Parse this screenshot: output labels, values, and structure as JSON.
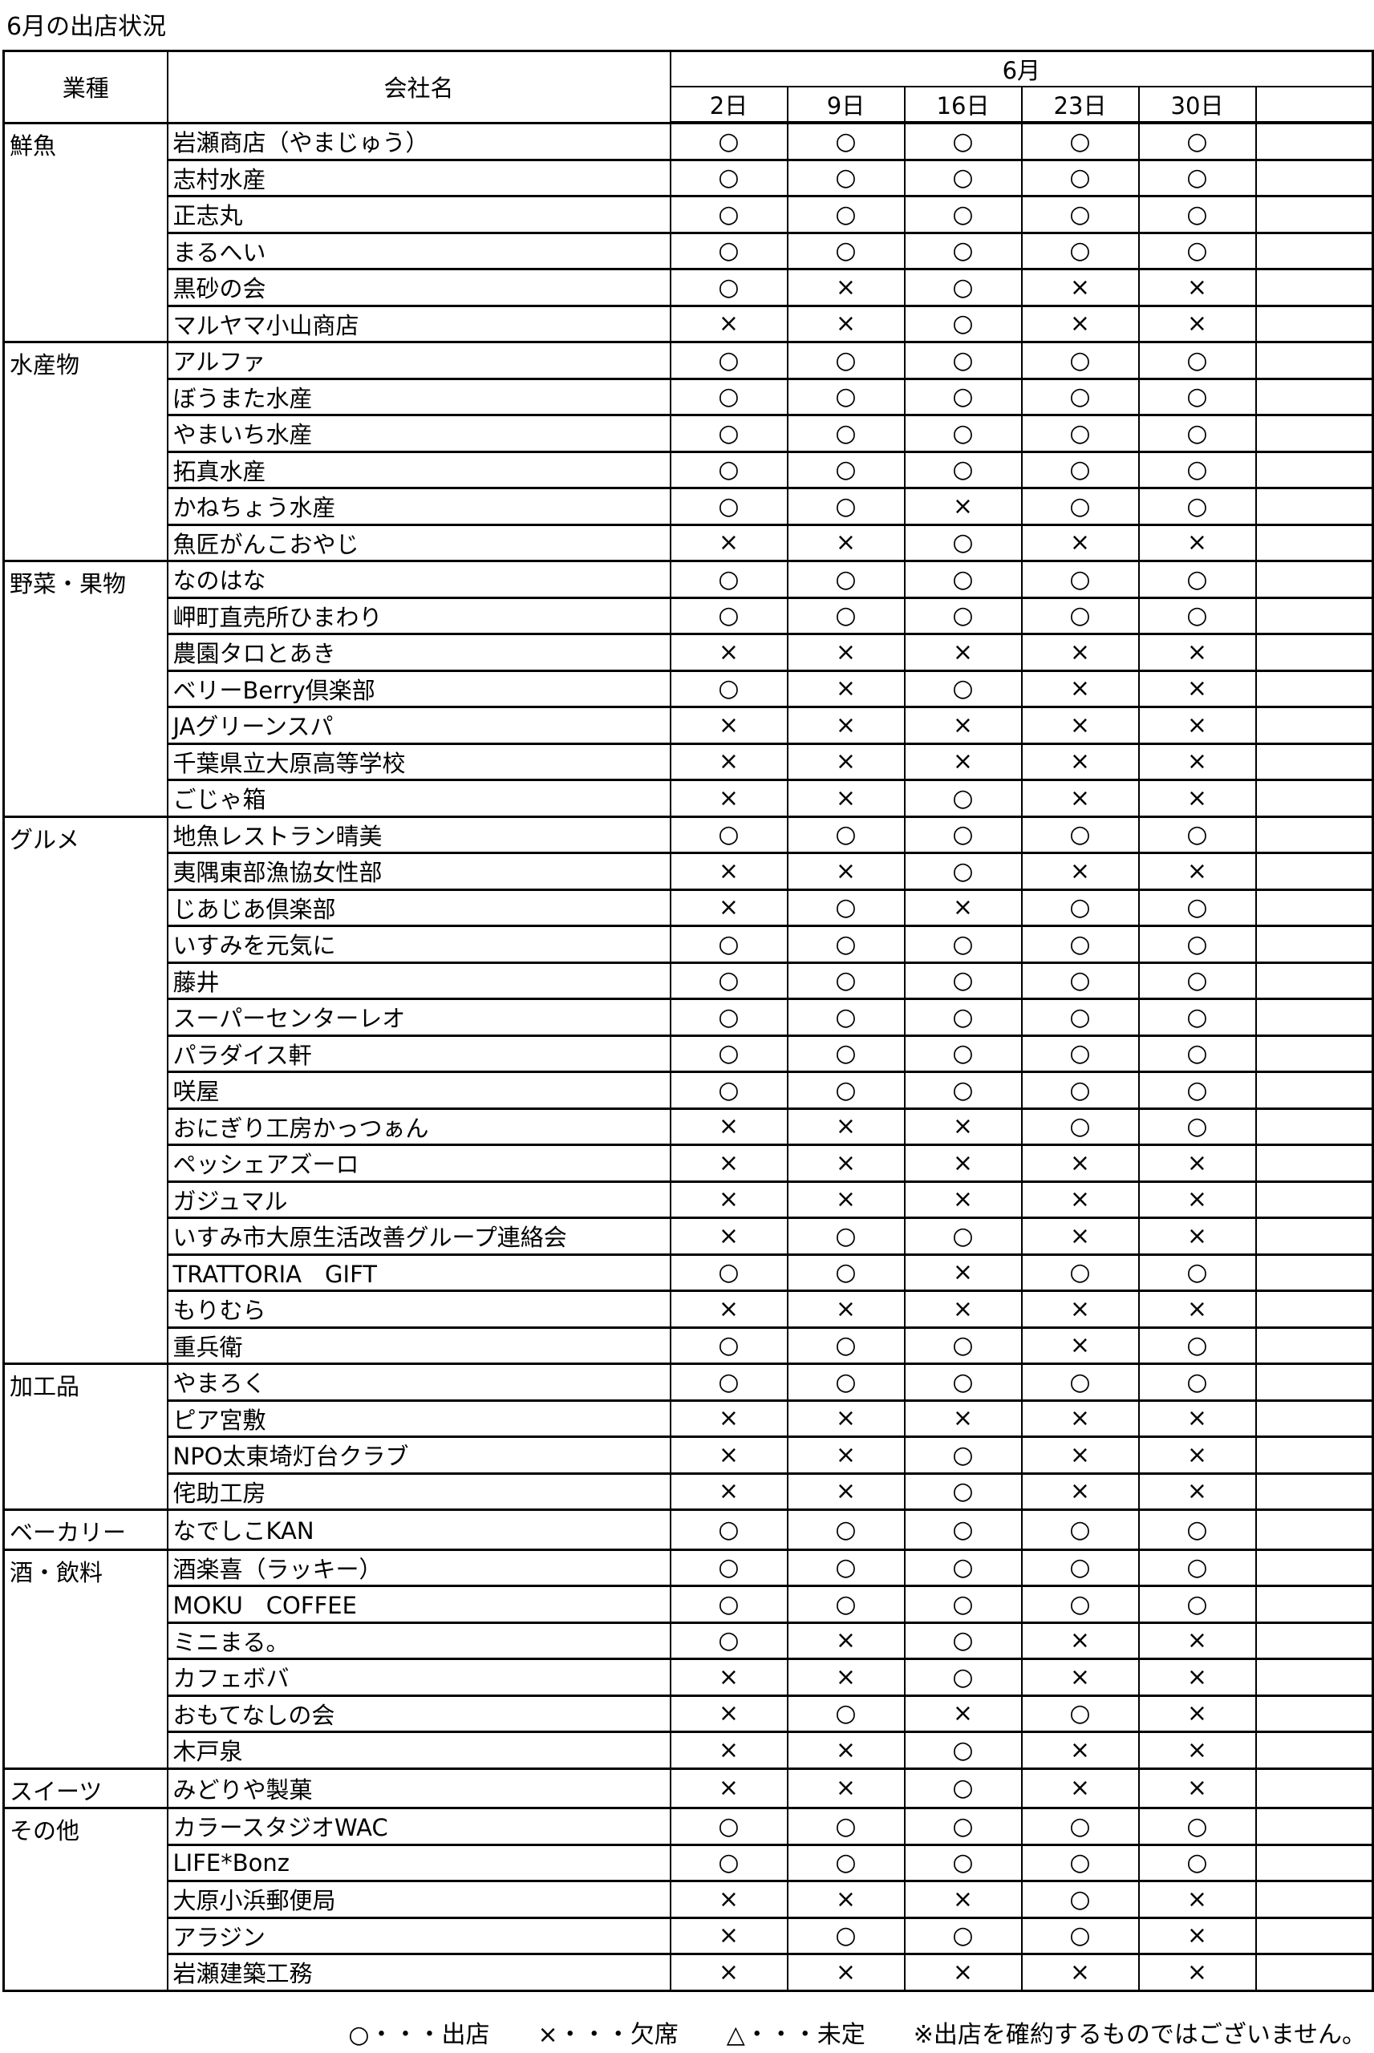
{
  "title": "6月の出店状況",
  "header": {
    "category": "業種",
    "company": "会社名",
    "month": "6月",
    "dates": [
      "2日",
      "9日",
      "16日",
      "23日",
      "30日",
      ""
    ]
  },
  "groups": [
    {
      "category": "鮮魚",
      "companies": [
        {
          "name": "岩瀬商店（やまじゅう）",
          "marks": [
            "○",
            "○",
            "○",
            "○",
            "○"
          ]
        },
        {
          "name": "志村水産",
          "marks": [
            "○",
            "○",
            "○",
            "○",
            "○"
          ]
        },
        {
          "name": "正志丸",
          "marks": [
            "○",
            "○",
            "○",
            "○",
            "○"
          ]
        },
        {
          "name": "まるへい",
          "marks": [
            "○",
            "○",
            "○",
            "○",
            "○"
          ]
        },
        {
          "name": "黒砂の会",
          "marks": [
            "○",
            "×",
            "○",
            "×",
            "×"
          ]
        },
        {
          "name": "マルヤマ小山商店",
          "marks": [
            "×",
            "×",
            "○",
            "×",
            "×"
          ]
        }
      ]
    },
    {
      "category": "水産物",
      "companies": [
        {
          "name": "アルファ",
          "marks": [
            "○",
            "○",
            "○",
            "○",
            "○"
          ]
        },
        {
          "name": "ぼうまた水産",
          "marks": [
            "○",
            "○",
            "○",
            "○",
            "○"
          ]
        },
        {
          "name": "やまいち水産",
          "marks": [
            "○",
            "○",
            "○",
            "○",
            "○"
          ]
        },
        {
          "name": "拓真水産",
          "marks": [
            "○",
            "○",
            "○",
            "○",
            "○"
          ]
        },
        {
          "name": "かねちょう水産",
          "marks": [
            "○",
            "○",
            "×",
            "○",
            "○"
          ]
        },
        {
          "name": "魚匠がんこおやじ",
          "marks": [
            "×",
            "×",
            "○",
            "×",
            "×"
          ]
        }
      ]
    },
    {
      "category": "野菜・果物",
      "companies": [
        {
          "name": "なのはな",
          "marks": [
            "○",
            "○",
            "○",
            "○",
            "○"
          ]
        },
        {
          "name": "岬町直売所ひまわり",
          "marks": [
            "○",
            "○",
            "○",
            "○",
            "○"
          ]
        },
        {
          "name": "農園タロとあき",
          "marks": [
            "×",
            "×",
            "×",
            "×",
            "×"
          ]
        },
        {
          "name": "ベリーBerry倶楽部",
          "marks": [
            "○",
            "×",
            "○",
            "×",
            "×"
          ]
        },
        {
          "name": "JAグリーンスパ",
          "marks": [
            "×",
            "×",
            "×",
            "×",
            "×"
          ]
        },
        {
          "name": "千葉県立大原高等学校",
          "marks": [
            "×",
            "×",
            "×",
            "×",
            "×"
          ]
        },
        {
          "name": "ごじゃ箱",
          "marks": [
            "×",
            "×",
            "○",
            "×",
            "×"
          ]
        }
      ]
    },
    {
      "category": "グルメ",
      "companies": [
        {
          "name": "地魚レストラン晴美",
          "marks": [
            "○",
            "○",
            "○",
            "○",
            "○"
          ]
        },
        {
          "name": "夷隅東部漁協女性部",
          "marks": [
            "×",
            "×",
            "○",
            "×",
            "×"
          ]
        },
        {
          "name": "じあじあ倶楽部",
          "marks": [
            "×",
            "○",
            "×",
            "○",
            "○"
          ]
        },
        {
          "name": "いすみを元気に",
          "marks": [
            "○",
            "○",
            "○",
            "○",
            "○"
          ]
        },
        {
          "name": "藤井",
          "marks": [
            "○",
            "○",
            "○",
            "○",
            "○"
          ]
        },
        {
          "name": "スーパーセンターレオ",
          "marks": [
            "○",
            "○",
            "○",
            "○",
            "○"
          ]
        },
        {
          "name": "パラダイス軒",
          "marks": [
            "○",
            "○",
            "○",
            "○",
            "○"
          ]
        },
        {
          "name": "咲屋",
          "marks": [
            "○",
            "○",
            "○",
            "○",
            "○"
          ]
        },
        {
          "name": "おにぎり工房かっつぁん",
          "marks": [
            "×",
            "×",
            "×",
            "○",
            "○"
          ]
        },
        {
          "name": "ペッシェアズーロ",
          "marks": [
            "×",
            "×",
            "×",
            "×",
            "×"
          ]
        },
        {
          "name": "ガジュマル",
          "marks": [
            "×",
            "×",
            "×",
            "×",
            "×"
          ]
        },
        {
          "name": "いすみ市大原生活改善グループ連絡会",
          "marks": [
            "×",
            "○",
            "○",
            "×",
            "×"
          ]
        },
        {
          "name": "TRATTORIA　GIFT",
          "marks": [
            "○",
            "○",
            "×",
            "○",
            "○"
          ]
        },
        {
          "name": "もりむら",
          "marks": [
            "×",
            "×",
            "×",
            "×",
            "×"
          ]
        },
        {
          "name": "重兵衛",
          "marks": [
            "○",
            "○",
            "○",
            "×",
            "○"
          ]
        }
      ]
    },
    {
      "category": "加工品",
      "companies": [
        {
          "name": "やまろく",
          "marks": [
            "○",
            "○",
            "○",
            "○",
            "○"
          ]
        },
        {
          "name": "ピア宮敷",
          "marks": [
            "×",
            "×",
            "×",
            "×",
            "×"
          ]
        },
        {
          "name": "NPO太東埼灯台クラブ",
          "marks": [
            "×",
            "×",
            "○",
            "×",
            "×"
          ]
        },
        {
          "name": "侘助工房",
          "marks": [
            "×",
            "×",
            "○",
            "×",
            "×"
          ]
        }
      ]
    },
    {
      "category": "ベーカリー",
      "companies": [
        {
          "name": "なでしこKAN",
          "marks": [
            "○",
            "○",
            "○",
            "○",
            "○"
          ]
        }
      ]
    },
    {
      "category": "酒・飲料",
      "companies": [
        {
          "name": "酒楽喜（ラッキー）",
          "marks": [
            "○",
            "○",
            "○",
            "○",
            "○"
          ]
        },
        {
          "name": "MOKU　COFFEE",
          "marks": [
            "○",
            "○",
            "○",
            "○",
            "○"
          ]
        },
        {
          "name": "ミニまる。",
          "marks": [
            "○",
            "×",
            "○",
            "×",
            "×"
          ]
        },
        {
          "name": "カフェボバ",
          "marks": [
            "×",
            "×",
            "○",
            "×",
            "×"
          ]
        },
        {
          "name": "おもてなしの会",
          "marks": [
            "×",
            "○",
            "×",
            "○",
            "×"
          ]
        },
        {
          "name": "木戸泉",
          "marks": [
            "×",
            "×",
            "○",
            "×",
            "×"
          ]
        }
      ]
    },
    {
      "category": "スイーツ",
      "companies": [
        {
          "name": "みどりや製菓",
          "marks": [
            "×",
            "×",
            "○",
            "×",
            "×"
          ]
        }
      ]
    },
    {
      "category": "その他",
      "companies": [
        {
          "name": "カラースタジオWAC",
          "marks": [
            "○",
            "○",
            "○",
            "○",
            "○"
          ]
        },
        {
          "name": "LIFE*Bonz",
          "marks": [
            "○",
            "○",
            "○",
            "○",
            "○"
          ]
        },
        {
          "name": "大原小浜郵便局",
          "marks": [
            "×",
            "×",
            "×",
            "○",
            "×"
          ]
        },
        {
          "name": "アラジン",
          "marks": [
            "×",
            "○",
            "○",
            "○",
            "×"
          ]
        },
        {
          "name": "岩瀬建築工務",
          "marks": [
            "×",
            "×",
            "×",
            "×",
            "×"
          ]
        }
      ]
    }
  ],
  "legend": "○・・・出店　　×・・・欠席　　△・・・未定　　※出店を確約するものではございません。"
}
